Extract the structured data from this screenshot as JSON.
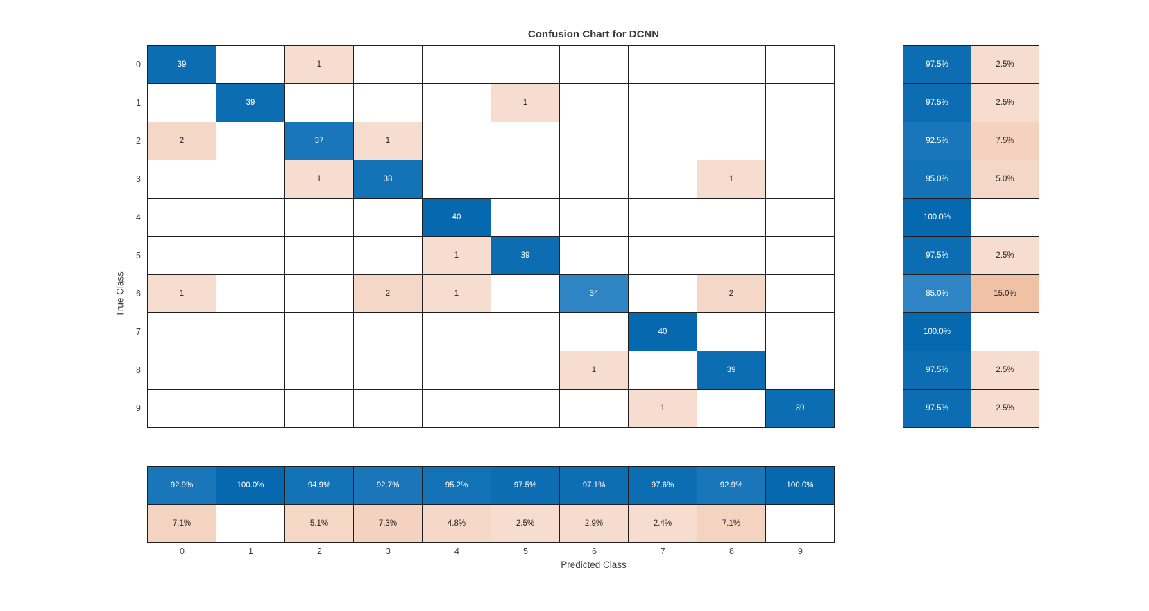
{
  "chart_data": {
    "type": "heatmap",
    "subtype": "confusion-matrix",
    "title": "Confusion Chart for DCNN",
    "xlabel": "Predicted Class",
    "ylabel": "True Class",
    "classes": [
      "0",
      "1",
      "2",
      "3",
      "4",
      "5",
      "6",
      "7",
      "8",
      "9"
    ],
    "per_class_total": 40,
    "matrix": [
      [
        39,
        0,
        1,
        0,
        0,
        0,
        0,
        0,
        0,
        0
      ],
      [
        0,
        39,
        0,
        0,
        0,
        1,
        0,
        0,
        0,
        0
      ],
      [
        2,
        0,
        37,
        1,
        0,
        0,
        0,
        0,
        0,
        0
      ],
      [
        0,
        0,
        1,
        38,
        0,
        0,
        0,
        0,
        1,
        0
      ],
      [
        0,
        0,
        0,
        0,
        40,
        0,
        0,
        0,
        0,
        0
      ],
      [
        0,
        0,
        0,
        0,
        1,
        39,
        0,
        0,
        0,
        0
      ],
      [
        1,
        0,
        0,
        2,
        1,
        0,
        34,
        0,
        2,
        0
      ],
      [
        0,
        0,
        0,
        0,
        0,
        0,
        0,
        40,
        0,
        0
      ],
      [
        0,
        0,
        0,
        0,
        0,
        0,
        1,
        0,
        39,
        0
      ],
      [
        0,
        0,
        0,
        0,
        0,
        0,
        0,
        1,
        0,
        39
      ]
    ],
    "row_summary_correct_pct": [
      "97.5%",
      "97.5%",
      "92.5%",
      "95.0%",
      "100.0%",
      "97.5%",
      "85.0%",
      "100.0%",
      "97.5%",
      "97.5%"
    ],
    "row_summary_incorrect_pct": [
      "2.5%",
      "2.5%",
      "7.5%",
      "5.0%",
      "",
      "2.5%",
      "15.0%",
      "",
      "2.5%",
      "2.5%"
    ],
    "col_summary_correct_pct": [
      "92.9%",
      "100.0%",
      "94.9%",
      "92.7%",
      "95.2%",
      "97.5%",
      "97.1%",
      "97.6%",
      "92.9%",
      "100.0%"
    ],
    "col_summary_incorrect_pct": [
      "7.1%",
      "",
      "5.1%",
      "7.3%",
      "4.8%",
      "2.5%",
      "2.9%",
      "2.4%",
      "7.1%",
      ""
    ],
    "legend_position": "none",
    "grid": true,
    "colors": {
      "blue_full": "#0669b0",
      "blue_light_anchor": "#589ed6",
      "pink_light": "#f7e2d7",
      "pink_dark": "#f0bc9e",
      "grid_line": "#1f1f1f",
      "text_dark": "#262626",
      "text_light": "#ffffff",
      "title_color": "#3a3a3a",
      "axis_color": "#404040",
      "background": "#ffffff"
    }
  }
}
